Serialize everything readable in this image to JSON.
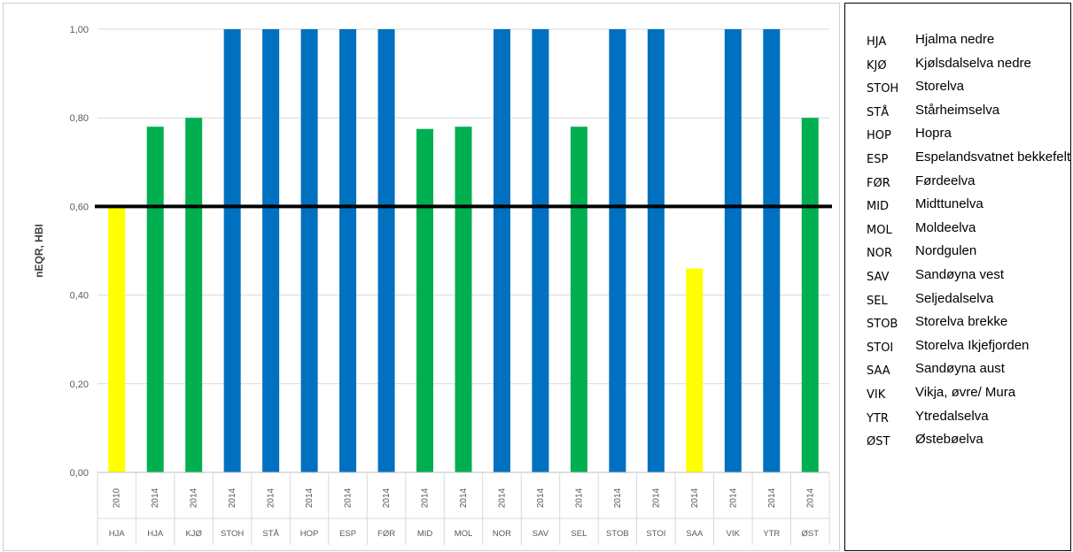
{
  "chart_data": {
    "type": "bar",
    "title": "",
    "xlabel": "",
    "ylabel": "nEQR, HBI",
    "ylim": [
      0,
      1.0
    ],
    "yticks": [
      "0,00",
      "0,20",
      "0,40",
      "0,60",
      "0,80",
      "1,00"
    ],
    "threshold": 0.6,
    "grid": true,
    "categories": [
      "HJA",
      "HJA",
      "KJØ",
      "STOH",
      "STÅ",
      "HOP",
      "ESP",
      "FØR",
      "MID",
      "MOL",
      "NOR",
      "SAV",
      "SEL",
      "STOB",
      "STOI",
      "SAA",
      "VIK",
      "YTR",
      "ØST"
    ],
    "years": [
      "2010",
      "2014",
      "2014",
      "2014",
      "2014",
      "2014",
      "2014",
      "2014",
      "2014",
      "2014",
      "2014",
      "2014",
      "2014",
      "2014",
      "2014",
      "2014",
      "2014",
      "2014",
      "2014"
    ],
    "values": [
      0.6,
      0.78,
      0.8,
      1.0,
      1.0,
      1.0,
      1.0,
      1.0,
      0.775,
      0.78,
      1.0,
      1.0,
      0.78,
      1.0,
      1.0,
      0.46,
      1.0,
      1.0,
      0.8
    ],
    "bar_colors": [
      "#ffff00",
      "#00b050",
      "#00b050",
      "#0070c0",
      "#0070c0",
      "#0070c0",
      "#0070c0",
      "#0070c0",
      "#00b050",
      "#00b050",
      "#0070c0",
      "#0070c0",
      "#00b050",
      "#0070c0",
      "#0070c0",
      "#ffff00",
      "#0070c0",
      "#0070c0",
      "#00b050"
    ]
  },
  "legend": [
    {
      "code": "HJA",
      "name": "Hjalma nedre"
    },
    {
      "code": "KJØ",
      "name": "Kjølsdalselva nedre"
    },
    {
      "code": "STOH",
      "name": "Storelva"
    },
    {
      "code": "STÅ",
      "name": "Stårheimselva"
    },
    {
      "code": "HOP",
      "name": "Hopra"
    },
    {
      "code": "ESP",
      "name": "Espelandsvatnet bekkefelt"
    },
    {
      "code": "FØR",
      "name": "Førdeelva"
    },
    {
      "code": "MID",
      "name": "Midttunelva"
    },
    {
      "code": "MOL",
      "name": "Moldeelva"
    },
    {
      "code": "NOR",
      "name": "Nordgulen"
    },
    {
      "code": "SAV",
      "name": "Sandøyna vest"
    },
    {
      "code": "SEL",
      "name": "Seljedalselva"
    },
    {
      "code": "STOB",
      "name": "Storelva brekke"
    },
    {
      "code": "STOI",
      "name": "Storelva Ikjefjorden"
    },
    {
      "code": "SAA",
      "name": "Sandøyna aust"
    },
    {
      "code": "VIK",
      "name": "Vikja, øvre/ Mura"
    },
    {
      "code": "YTR",
      "name": "Ytredalselva"
    },
    {
      "code": "ØST",
      "name": "Østebøelva"
    }
  ]
}
